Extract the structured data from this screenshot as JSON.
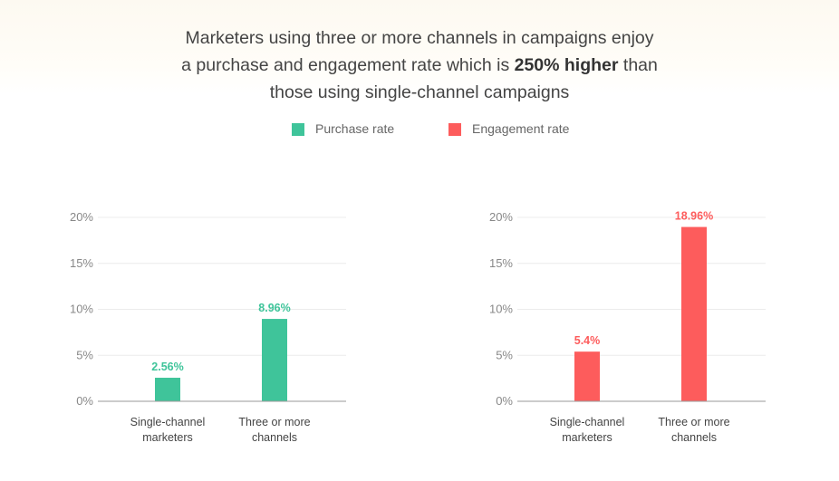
{
  "headline": {
    "line1": "Marketers using three or more channels in campaigns enjoy",
    "line2_pre": "a purchase and engagement rate which is ",
    "line2_bold": "250% higher",
    "line2_post": " than",
    "line3": "those using single-channel campaigns"
  },
  "legend": [
    {
      "label": "Purchase rate",
      "color": "#3fc49a"
    },
    {
      "label": "Engagement rate",
      "color": "#fd5c5c"
    }
  ],
  "chart_data": [
    {
      "type": "bar",
      "categories": [
        [
          "Single-channel",
          "marketers"
        ],
        [
          "Three or more",
          "channels"
        ]
      ],
      "series": [
        {
          "name": "Purchase rate",
          "values": [
            2.56,
            8.96
          ],
          "color": "#3fc49a"
        }
      ],
      "data_labels": [
        "2.56%",
        "8.96%"
      ],
      "ylim": [
        0,
        20
      ],
      "yticks": [
        0,
        5,
        10,
        15,
        20
      ],
      "ytick_labels": [
        "0%",
        "5%",
        "10%",
        "15%",
        "20%"
      ],
      "grid": true
    },
    {
      "type": "bar",
      "categories": [
        [
          "Single-channel",
          "marketers"
        ],
        [
          "Three or more",
          "channels"
        ]
      ],
      "series": [
        {
          "name": "Engagement rate",
          "values": [
            5.4,
            18.96
          ],
          "color": "#fd5c5c"
        }
      ],
      "data_labels": [
        "5.4%",
        "18.96%"
      ],
      "ylim": [
        0,
        20
      ],
      "yticks": [
        0,
        5,
        10,
        15,
        20
      ],
      "ytick_labels": [
        "0%",
        "5%",
        "10%",
        "15%",
        "20%"
      ],
      "grid": true
    }
  ]
}
